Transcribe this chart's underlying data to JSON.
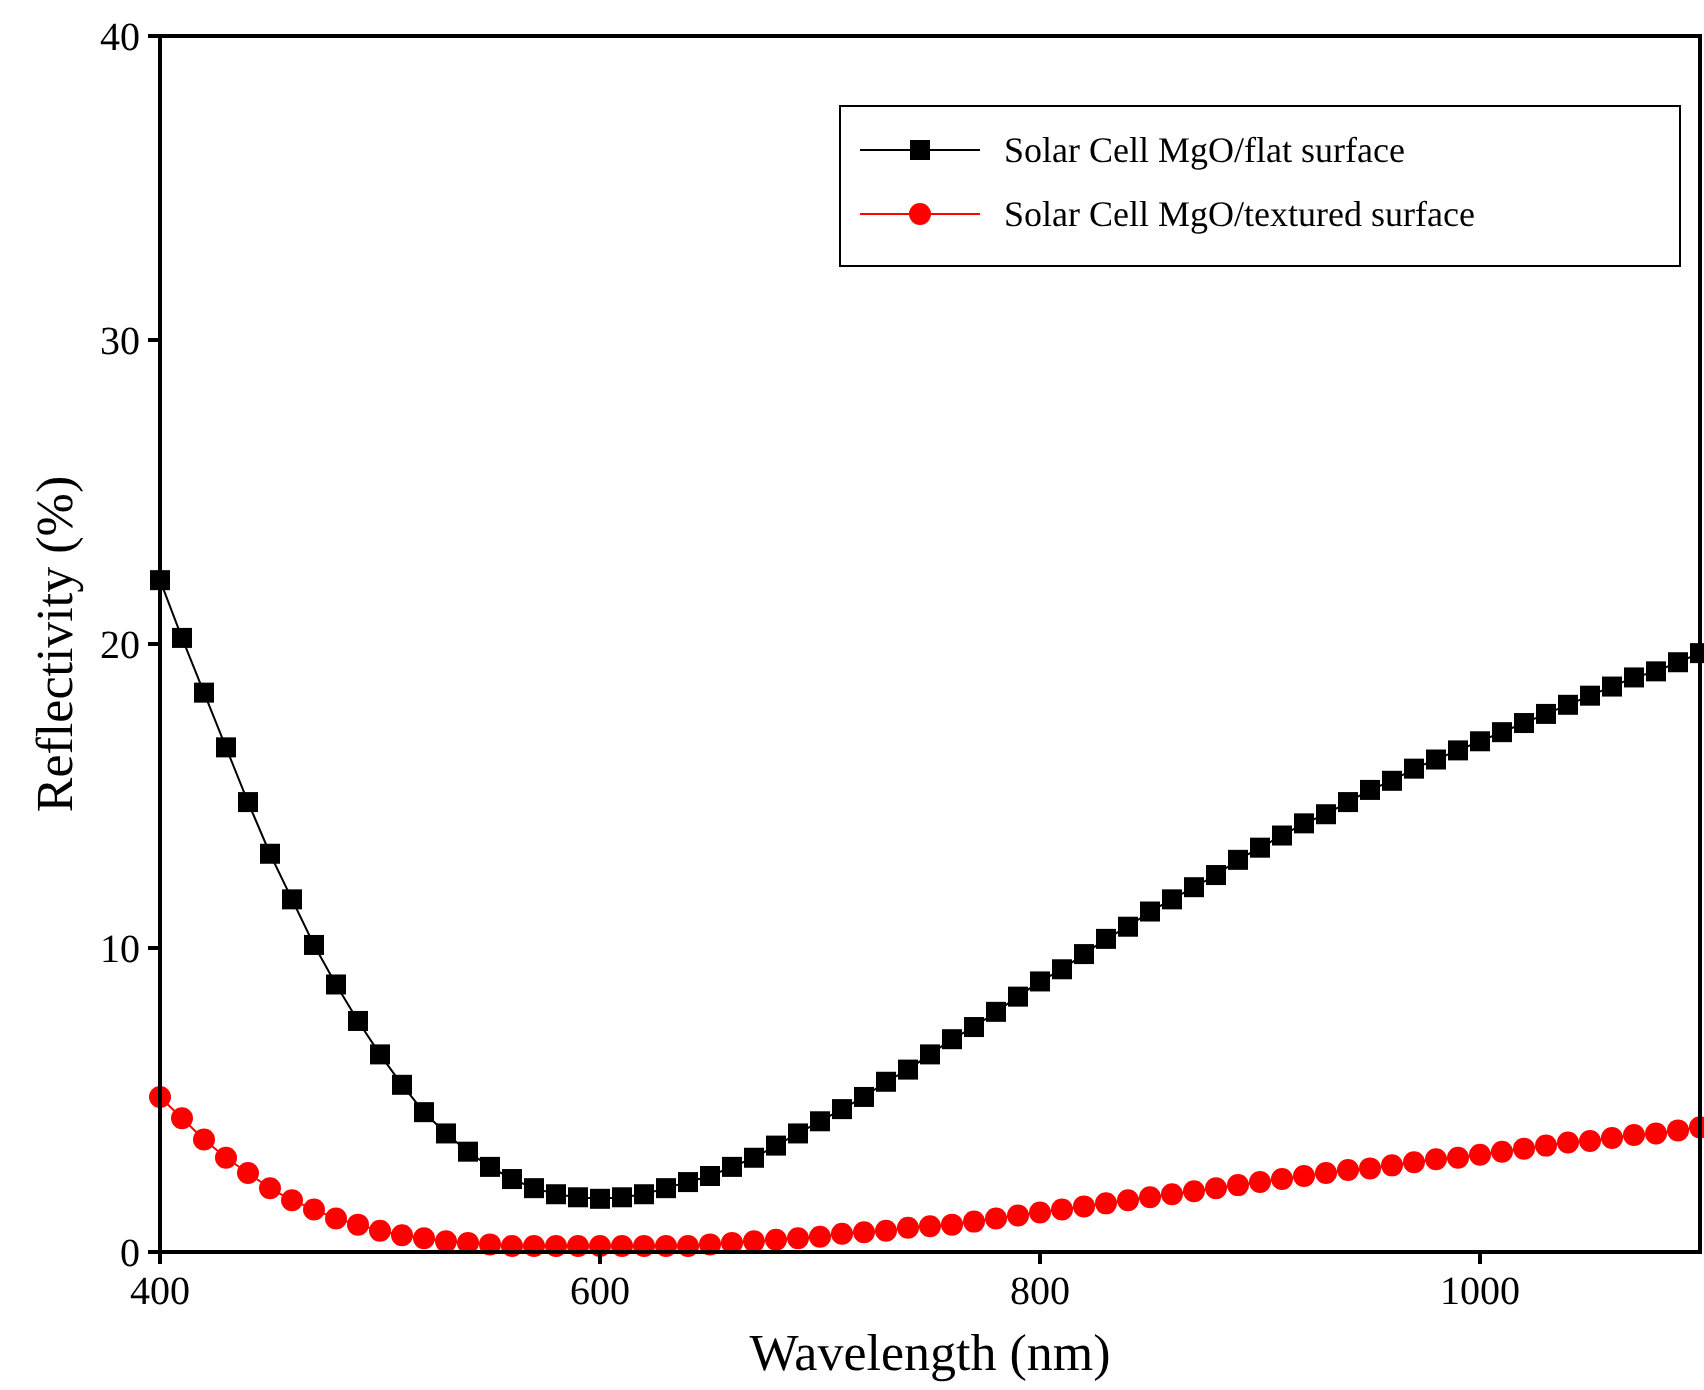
{
  "chart_data": {
    "type": "line",
    "xlabel": "Wavelength (nm)",
    "ylabel": "Reflectivity (%)",
    "xlim": [
      400,
      1100
    ],
    "ylim": [
      0,
      40
    ],
    "xticks": [
      400,
      600,
      800,
      1000
    ],
    "yticks": [
      0,
      10,
      20,
      30,
      40
    ],
    "grid": false,
    "legend": "top right",
    "line_style": "solid",
    "x": [
      400,
      410,
      420,
      430,
      440,
      450,
      460,
      470,
      480,
      490,
      500,
      510,
      520,
      530,
      540,
      550,
      560,
      570,
      580,
      590,
      600,
      610,
      620,
      630,
      640,
      650,
      660,
      670,
      680,
      690,
      700,
      710,
      720,
      730,
      740,
      750,
      760,
      770,
      780,
      790,
      800,
      810,
      820,
      830,
      840,
      850,
      860,
      870,
      880,
      890,
      900,
      910,
      920,
      930,
      940,
      950,
      960,
      970,
      980,
      990,
      1000,
      1010,
      1020,
      1030,
      1040,
      1050,
      1060,
      1070,
      1080,
      1090,
      1100
    ],
    "series": [
      {
        "name": "Solar Cell MgO/flat surface",
        "color": "#000000",
        "marker": "square",
        "values": [
          22.1,
          20.2,
          18.4,
          16.6,
          14.8,
          13.1,
          11.6,
          10.1,
          8.8,
          7.6,
          6.5,
          5.5,
          4.6,
          3.9,
          3.3,
          2.8,
          2.4,
          2.1,
          1.9,
          1.8,
          1.75,
          1.8,
          1.9,
          2.1,
          2.3,
          2.5,
          2.8,
          3.1,
          3.5,
          3.9,
          4.3,
          4.7,
          5.1,
          5.6,
          6.0,
          6.5,
          7.0,
          7.4,
          7.9,
          8.4,
          8.9,
          9.3,
          9.8,
          10.3,
          10.7,
          11.2,
          11.6,
          12.0,
          12.4,
          12.9,
          13.3,
          13.7,
          14.1,
          14.4,
          14.8,
          15.2,
          15.5,
          15.9,
          16.2,
          16.5,
          16.8,
          17.1,
          17.4,
          17.7,
          18.0,
          18.3,
          18.6,
          18.9,
          19.1,
          19.4,
          19.7
        ]
      },
      {
        "name": "Solar Cell MgO/textured surface",
        "color": "#ff0000",
        "marker": "circle",
        "values": [
          5.1,
          4.4,
          3.7,
          3.1,
          2.6,
          2.1,
          1.7,
          1.4,
          1.1,
          0.9,
          0.7,
          0.55,
          0.45,
          0.35,
          0.3,
          0.25,
          0.2,
          0.2,
          0.2,
          0.2,
          0.2,
          0.2,
          0.2,
          0.2,
          0.2,
          0.25,
          0.3,
          0.35,
          0.4,
          0.45,
          0.5,
          0.6,
          0.65,
          0.7,
          0.8,
          0.85,
          0.9,
          1.0,
          1.1,
          1.2,
          1.3,
          1.4,
          1.5,
          1.6,
          1.7,
          1.8,
          1.9,
          2.0,
          2.1,
          2.2,
          2.3,
          2.4,
          2.5,
          2.6,
          2.7,
          2.75,
          2.85,
          2.95,
          3.05,
          3.1,
          3.2,
          3.3,
          3.4,
          3.5,
          3.6,
          3.65,
          3.75,
          3.85,
          3.9,
          4.0,
          4.1
        ]
      }
    ]
  }
}
